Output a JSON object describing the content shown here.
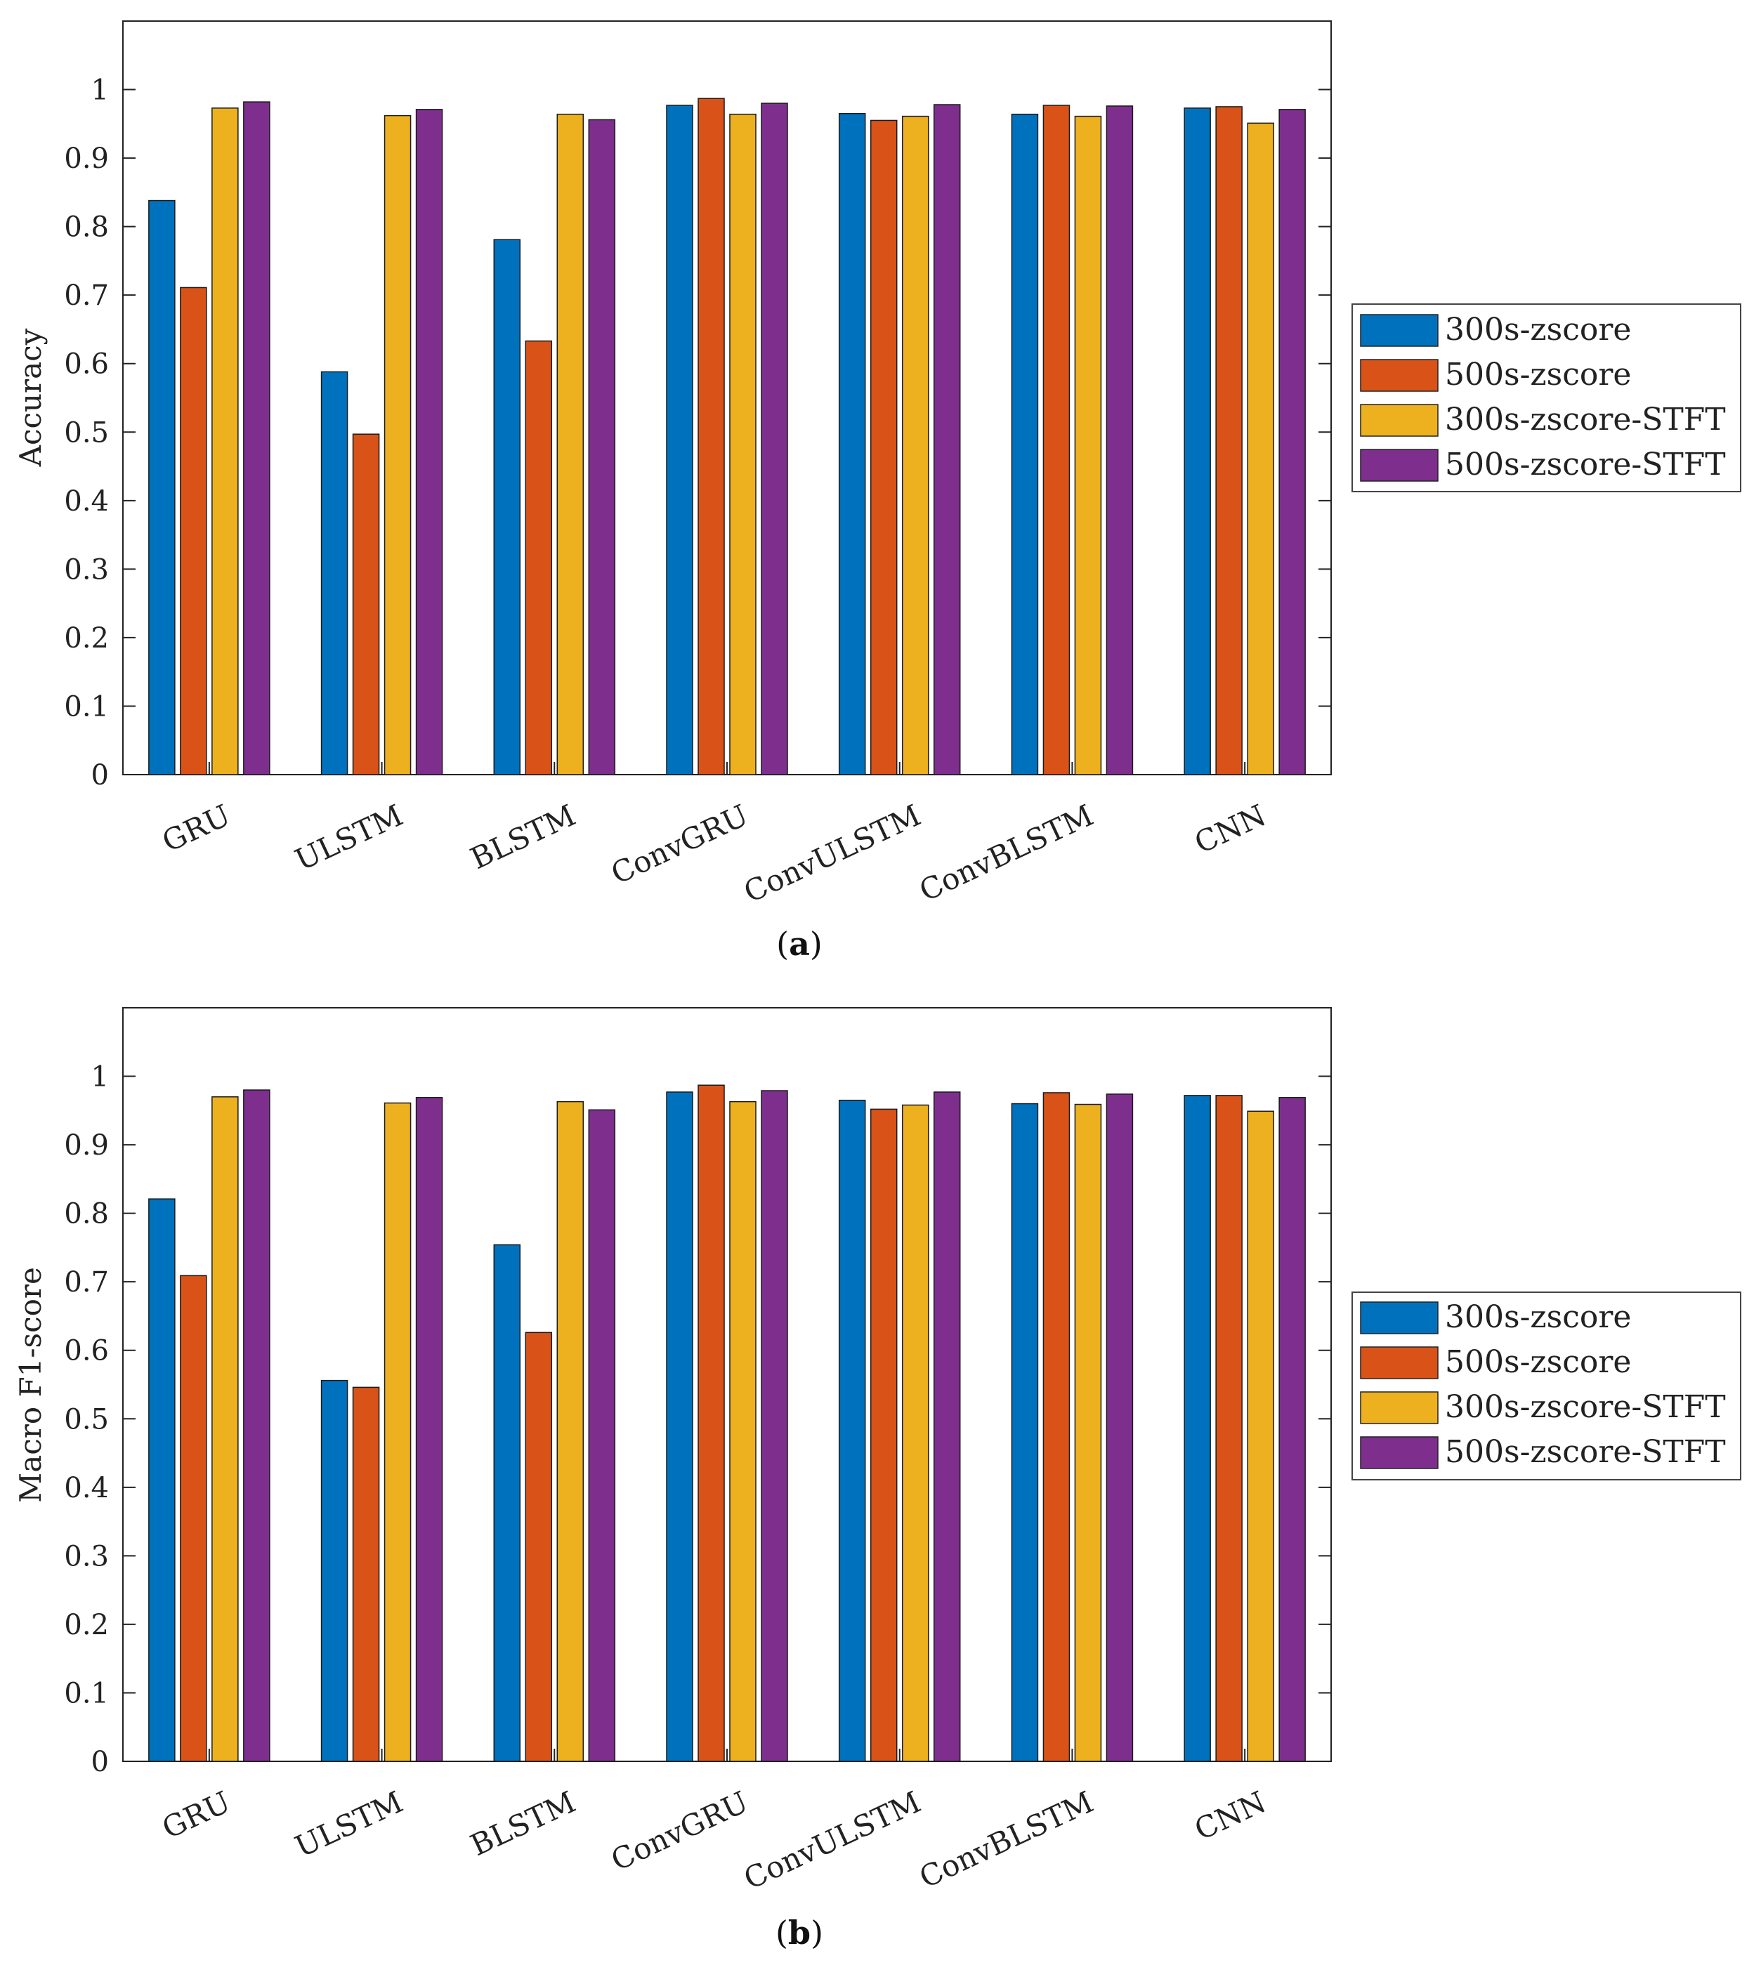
{
  "chart_data": [
    {
      "type": "bar",
      "caption": "a",
      "ylabel": "Accuracy",
      "xlabel": "",
      "ylim": [
        0,
        1.1
      ],
      "yticks": [
        "0",
        "0.1",
        "0.2",
        "0.3",
        "0.4",
        "0.5",
        "0.6",
        "0.7",
        "0.8",
        "0.9",
        "1"
      ],
      "categories": [
        "GRU",
        "ULSTM",
        "BLSTM",
        "ConvGRU",
        "ConvULSTM",
        "ConvBLSTM",
        "CNN"
      ],
      "legend_position": "right",
      "series": [
        {
          "name": "300s-zscore",
          "color": "#0072BD",
          "values": [
            0.838,
            0.588,
            0.781,
            0.977,
            0.965,
            0.964,
            0.973
          ]
        },
        {
          "name": "500s-zscore",
          "color": "#D95319",
          "values": [
            0.711,
            0.497,
            0.633,
            0.987,
            0.955,
            0.977,
            0.975
          ]
        },
        {
          "name": "300s-zscore-STFT",
          "color": "#EDB120",
          "values": [
            0.973,
            0.962,
            0.964,
            0.964,
            0.961,
            0.961,
            0.951
          ]
        },
        {
          "name": "500s-zscore-STFT",
          "color": "#7E2F8E",
          "values": [
            0.982,
            0.971,
            0.956,
            0.98,
            0.978,
            0.976,
            0.971
          ]
        }
      ]
    },
    {
      "type": "bar",
      "caption": "b",
      "ylabel": "Macro F1-score",
      "xlabel": "",
      "ylim": [
        0,
        1.1
      ],
      "yticks": [
        "0",
        "0.1",
        "0.2",
        "0.3",
        "0.4",
        "0.5",
        "0.6",
        "0.7",
        "0.8",
        "0.9",
        "1"
      ],
      "categories": [
        "GRU",
        "ULSTM",
        "BLSTM",
        "ConvGRU",
        "ConvULSTM",
        "ConvBLSTM",
        "CNN"
      ],
      "legend_position": "right",
      "series": [
        {
          "name": "300s-zscore",
          "color": "#0072BD",
          "values": [
            0.821,
            0.556,
            0.754,
            0.977,
            0.965,
            0.96,
            0.972
          ]
        },
        {
          "name": "500s-zscore",
          "color": "#D95319",
          "values": [
            0.709,
            0.546,
            0.626,
            0.987,
            0.952,
            0.976,
            0.972
          ]
        },
        {
          "name": "300s-zscore-STFT",
          "color": "#EDB120",
          "values": [
            0.97,
            0.961,
            0.963,
            0.963,
            0.958,
            0.959,
            0.949
          ]
        },
        {
          "name": "500s-zscore-STFT",
          "color": "#7E2F8E",
          "values": [
            0.98,
            0.969,
            0.951,
            0.979,
            0.977,
            0.974,
            0.969
          ]
        }
      ]
    }
  ]
}
